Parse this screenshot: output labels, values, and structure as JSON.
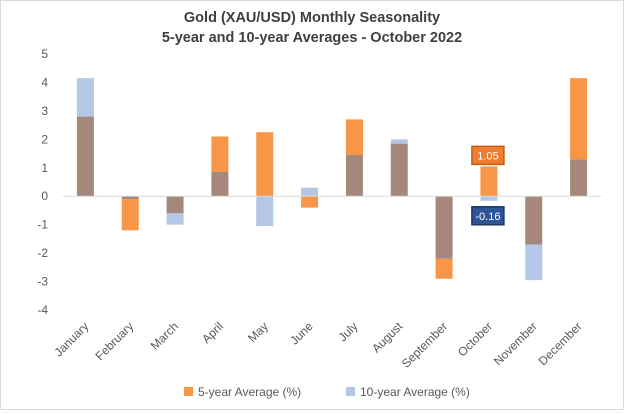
{
  "chart_data": {
    "type": "bar",
    "title": "Gold (XAU/USD) Monthly Seasonality",
    "subtitle": "5-year and 10-year Averages - October 2022",
    "xlabel": "",
    "ylabel": "",
    "ylim": [
      -4,
      5
    ],
    "yticks": [
      5,
      4,
      3,
      2,
      1,
      0,
      -1,
      -2,
      -3,
      -4
    ],
    "grid": false,
    "legend_position": "bottom",
    "categories": [
      "January",
      "February",
      "March",
      "April",
      "May",
      "June",
      "July",
      "August",
      "September",
      "October",
      "November",
      "December"
    ],
    "series": [
      {
        "name": "5-year Average (%)",
        "color": "#f79646",
        "values": [
          2.8,
          -1.2,
          -0.6,
          2.1,
          2.25,
          -0.4,
          2.7,
          1.85,
          -2.9,
          1.05,
          -1.7,
          4.15
        ]
      },
      {
        "name": "10-year Average (%)",
        "color": "#b4c7e7",
        "values": [
          4.15,
          -0.1,
          -1.0,
          0.85,
          -1.05,
          0.3,
          1.45,
          2.0,
          -2.2,
          -0.16,
          -2.95,
          1.3
        ]
      }
    ],
    "overlap_color": "#a5887b",
    "annotations": [
      {
        "category": "October",
        "series": "5-year Average (%)",
        "text": "1.05",
        "fill": "#ed7d31",
        "border": "#c55a11"
      },
      {
        "category": "October",
        "series": "10-year Average (%)",
        "text": "-0.16",
        "fill": "#2e5597",
        "border": "#1f3864"
      }
    ]
  }
}
